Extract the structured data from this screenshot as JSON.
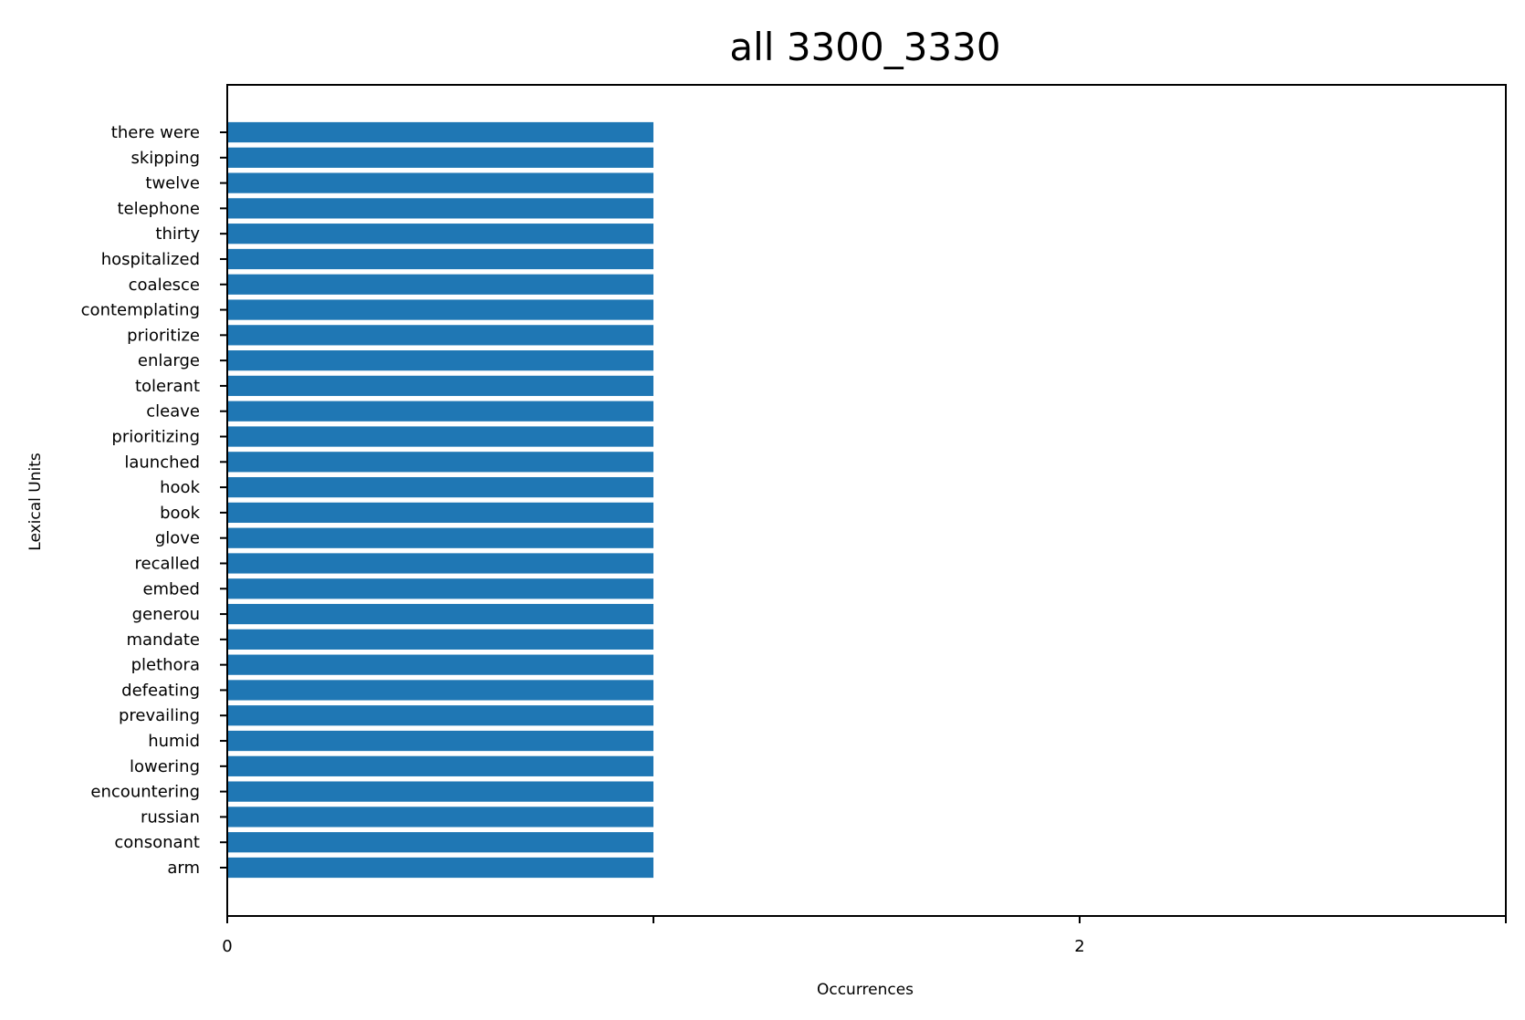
{
  "chart_data": {
    "type": "bar",
    "orientation": "horizontal",
    "title": "all 3300_3330",
    "xlabel": "Occurrences",
    "ylabel": "Lexical Units",
    "xlim": [
      0,
      3
    ],
    "xticks": [
      0,
      1,
      2,
      3
    ],
    "xtick_labels": [
      "0",
      "",
      "2",
      ""
    ],
    "grid": false,
    "bar_color": "#1f77b4",
    "categories": [
      "there were",
      "skipping",
      "twelve",
      "telephone",
      "thirty",
      "hospitalized",
      "coalesce",
      "contemplating",
      "prioritize",
      "enlarge",
      "tolerant",
      "cleave",
      "prioritizing",
      "launched",
      "hook",
      "book",
      "glove",
      "recalled",
      "embed",
      "generou",
      "mandate",
      "plethora",
      "defeating",
      "prevailing",
      "humid",
      "lowering",
      "encountering",
      "russian",
      "consonant",
      "arm"
    ],
    "values": [
      1,
      1,
      1,
      1,
      1,
      1,
      1,
      1,
      1,
      1,
      1,
      1,
      1,
      1,
      1,
      1,
      1,
      1,
      1,
      1,
      1,
      1,
      1,
      1,
      1,
      1,
      1,
      1,
      1,
      1
    ]
  }
}
